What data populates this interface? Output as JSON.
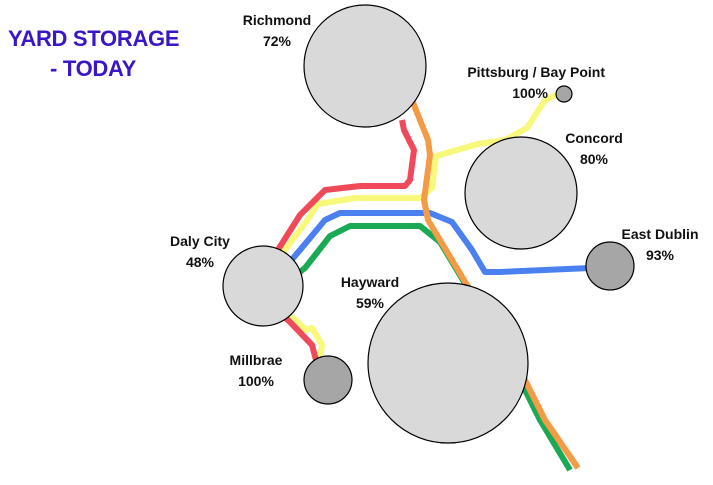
{
  "title": {
    "line1": "YARD STORAGE",
    "line2": "- TODAY"
  },
  "colors": {
    "red": "#f04a5a",
    "orange": "#f59a45",
    "yellow": "#f8f87a",
    "blue": "#4a80f0",
    "green": "#1aaa55",
    "circle_light": "#d9d9d9",
    "circle_dark": "#a6a6a6",
    "title": "#3a16c6"
  },
  "stations": [
    {
      "id": "richmond",
      "name": "Richmond",
      "pct": "72%",
      "value": 72,
      "fill": "circle_light"
    },
    {
      "id": "pittsburg",
      "name": "Pittsburg / Bay Point",
      "pct": "100%",
      "value": 100,
      "fill": "circle_dark"
    },
    {
      "id": "concord",
      "name": "Concord",
      "pct": "80%",
      "value": 80,
      "fill": "circle_light"
    },
    {
      "id": "east-dublin",
      "name": "East Dublin",
      "pct": "93%",
      "value": 93,
      "fill": "circle_dark"
    },
    {
      "id": "daly-city",
      "name": "Daly City",
      "pct": "48%",
      "value": 48,
      "fill": "circle_light"
    },
    {
      "id": "hayward",
      "name": "Hayward",
      "pct": "59%",
      "value": 59,
      "fill": "circle_light"
    },
    {
      "id": "millbrae",
      "name": "Millbrae",
      "pct": "100%",
      "value": 100,
      "fill": "circle_dark"
    }
  ]
}
